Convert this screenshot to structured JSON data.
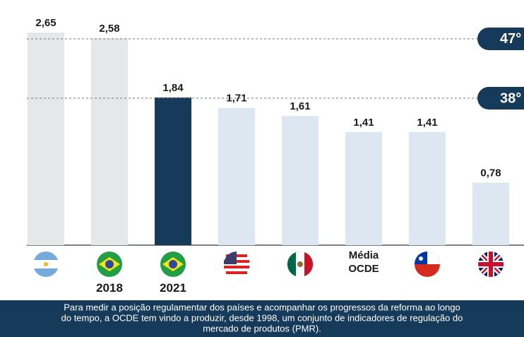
{
  "chart_data": {
    "type": "bar",
    "categories": [
      null,
      "2018",
      "2021",
      null,
      null,
      "Média OCDE",
      null,
      null
    ],
    "values": [
      2.65,
      2.58,
      1.84,
      1.71,
      1.61,
      1.41,
      1.41,
      0.78
    ],
    "value_labels": [
      "2,65",
      "2,58",
      "1,84",
      "1,71",
      "1,61",
      "1,41",
      "1,41",
      "0,78"
    ],
    "colors": [
      "#e4e8e8",
      "#e4e8e8",
      "#163a5a",
      "#dde7f2",
      "#dde7f2",
      "#dde7f2",
      "#dde7f2",
      "#dde7f2"
    ],
    "annotations": [
      "47°",
      "38°"
    ],
    "footnote": [
      "Para medir a posição regulamentar dos países e acompanhar os progressos da reforma ao longo",
      "do tempo, a OCDE tem vindo a produzir, desde 1998, um conjunto de indicadores de regulação do",
      "mercado de produtos (PMR)."
    ]
  }
}
